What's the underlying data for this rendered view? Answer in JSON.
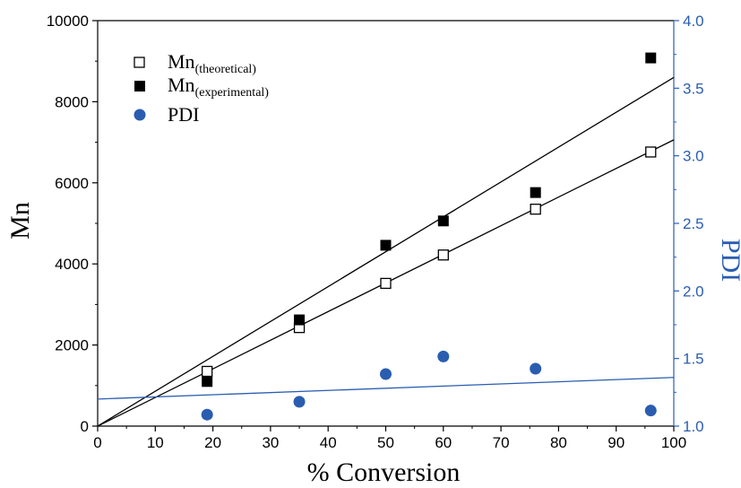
{
  "chart_data": {
    "type": "scatter",
    "xlabel": "% Conversion",
    "ylabel_left": "Mn",
    "ylabel_right": "PDI",
    "xlim": [
      0,
      100
    ],
    "ylim_left": [
      0,
      10000
    ],
    "ylim_right": [
      1.0,
      4.0
    ],
    "x_ticks": [
      0,
      10,
      20,
      30,
      40,
      50,
      60,
      70,
      80,
      90,
      100
    ],
    "y_left_ticks": [
      0,
      2000,
      4000,
      6000,
      8000,
      10000
    ],
    "y_right_ticks": [
      "1.0",
      "1.5",
      "2.0",
      "2.5",
      "3.0",
      "3.5",
      "4.0"
    ],
    "grid": false,
    "legend_position": "top-left",
    "colors": {
      "black": "#000000",
      "blue": "#2a5db0"
    },
    "series": [
      {
        "name": "Mn",
        "name_sub": "(theoretical)",
        "axis": "left",
        "marker": "open-square",
        "color": "#000000",
        "x": [
          19,
          35,
          50,
          60,
          76,
          96
        ],
        "y": [
          1350,
          2430,
          3520,
          4220,
          5350,
          6760
        ]
      },
      {
        "name": "Mn",
        "name_sub": "(experimental)",
        "axis": "left",
        "marker": "filled-square",
        "color": "#000000",
        "x": [
          19,
          35,
          50,
          60,
          76,
          96
        ],
        "y": [
          1100,
          2620,
          4460,
          5060,
          5760,
          9080
        ]
      },
      {
        "name": "PDI",
        "name_sub": "",
        "axis": "right",
        "marker": "filled-circle",
        "color": "#2a5db0",
        "x": [
          19,
          35,
          50,
          60,
          76,
          96
        ],
        "y": [
          1.085,
          1.18,
          1.385,
          1.515,
          1.425,
          1.115
        ]
      }
    ],
    "fit_lines": [
      {
        "series": "Mn(theoretical)",
        "axis": "left",
        "color": "#000000",
        "x": [
          0,
          100
        ],
        "y": [
          0,
          7060
        ]
      },
      {
        "series": "Mn(experimental)",
        "axis": "left",
        "color": "#000000",
        "x": [
          0,
          100
        ],
        "y": [
          0,
          8600
        ]
      },
      {
        "series": "PDI",
        "axis": "right",
        "color": "#2a5db0",
        "x": [
          0,
          100
        ],
        "y": [
          1.2,
          1.36
        ]
      }
    ]
  }
}
